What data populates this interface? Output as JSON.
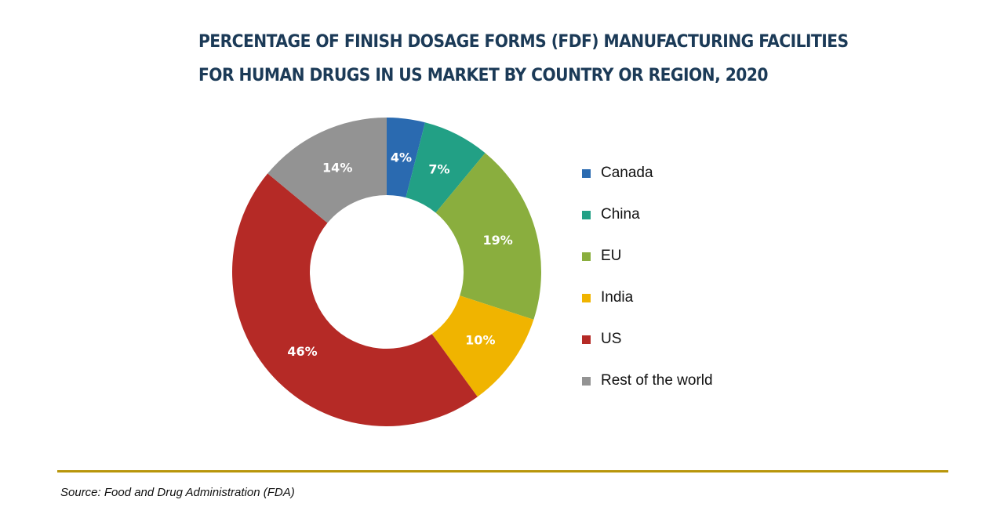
{
  "chart_data": {
    "type": "pie",
    "variant": "donut",
    "title_lines": [
      "PERCENTAGE OF FINISH DOSAGE FORMS (FDF) MANUFACTURING FACILITIES",
      "FOR HUMAN DRUGS IN US MARKET BY COUNTRY OR REGION, 2020"
    ],
    "categories": [
      "Canada",
      "China",
      "EU",
      "India",
      "US",
      "Rest of the world"
    ],
    "values": [
      4,
      7,
      19,
      10,
      46,
      14
    ],
    "data_labels": [
      "4%",
      "7%",
      "19%",
      "10%",
      "46%",
      "14%"
    ],
    "colors": [
      "#2a6ab0",
      "#22a085",
      "#8aae3e",
      "#f0b400",
      "#b52a26",
      "#939393"
    ],
    "legend_position": "right",
    "start_angle": "12 o'clock, clockwise"
  },
  "source": "Source: Food and Drug Administration (FDA)"
}
